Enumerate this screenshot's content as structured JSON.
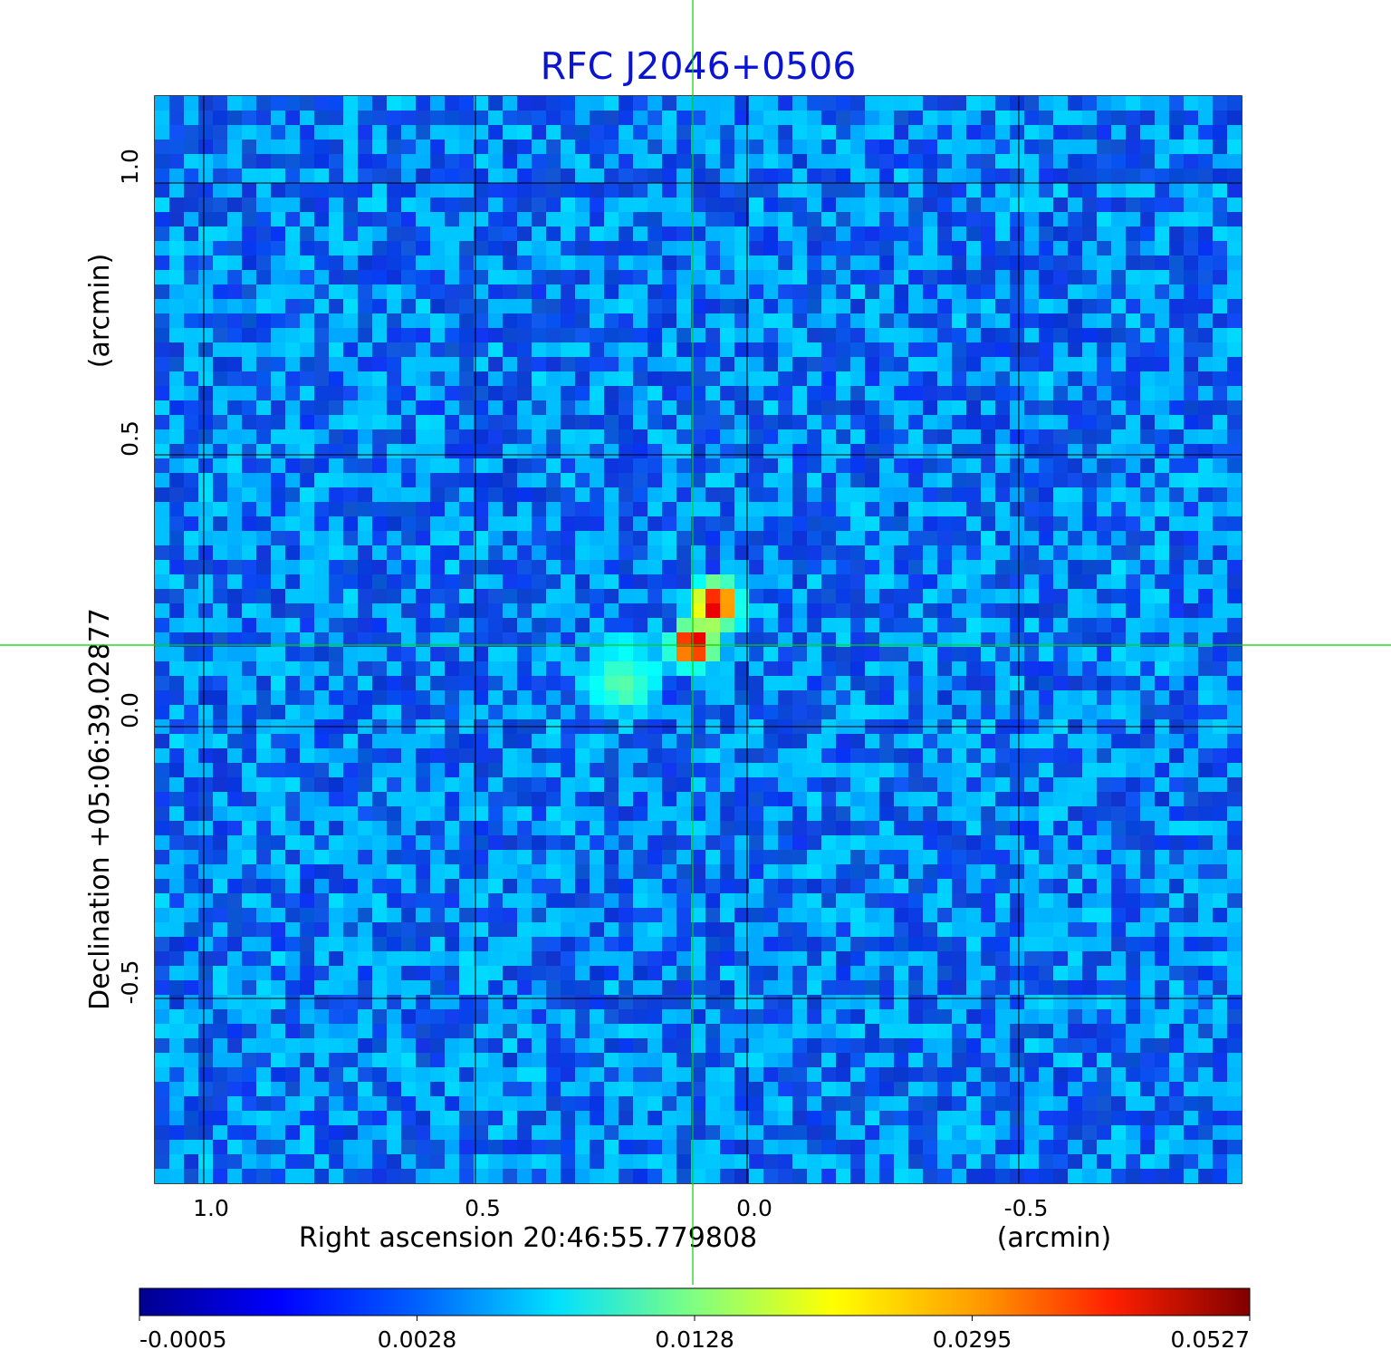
{
  "chart_data": {
    "type": "heatmap",
    "title": "RFC J2046+0506",
    "xlabel": "Right ascension  20:46:55.779808",
    "xunit": "(arcmin)",
    "ylabel": "Declination  +05:06:39.02877",
    "yunit": "(arcmin)",
    "xlim": [
      1.09,
      -0.91
    ],
    "ylim": [
      -0.84,
      1.16
    ],
    "x_ticks": [
      {
        "value": 1.0,
        "label": "1.0"
      },
      {
        "value": 0.5,
        "label": "0.5"
      },
      {
        "value": 0.0,
        "label": "0.0"
      },
      {
        "value": -0.5,
        "label": "-0.5"
      }
    ],
    "y_ticks": [
      {
        "value": 1.0,
        "label": "1.0"
      },
      {
        "value": 0.5,
        "label": "0.5"
      },
      {
        "value": 0.0,
        "label": "0.0"
      },
      {
        "value": -0.5,
        "label": "-0.5"
      }
    ],
    "grid": true,
    "crosshair": {
      "x": 0.1,
      "y": 0.15
    },
    "sources": [
      {
        "x": 0.1,
        "y": 0.15,
        "peak": 0.0527,
        "sigma": 0.018
      },
      {
        "x": 0.058,
        "y": 0.225,
        "peak": 0.045,
        "sigma": 0.02
      },
      {
        "x": 0.23,
        "y": 0.085,
        "peak": 0.004,
        "sigma": 0.035
      }
    ],
    "colorbar": {
      "ticks": [
        "-0.0005",
        "0.0028",
        "0.0128",
        "0.0295",
        "0.0527"
      ],
      "colormap": "jet"
    },
    "colors": {
      "title": "#0b14d0",
      "background_map": "#1446f0",
      "crosshair": "#00d400",
      "grid": "#000000"
    }
  }
}
